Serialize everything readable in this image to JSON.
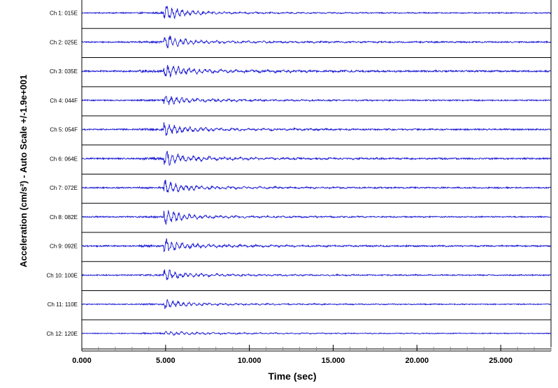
{
  "chart_data": {
    "type": "line",
    "title": "",
    "xlabel": "Time (sec)",
    "ylabel": "Acceleration (cm/s²) - Auto Scale +/-1.9e+001",
    "xlim": [
      0,
      28
    ],
    "x_ticks": [
      "0.000",
      "5.000",
      "10.000",
      "15.000",
      "20.000",
      "25.000"
    ],
    "x_tick_values": [
      0,
      5,
      10,
      15,
      20,
      25
    ],
    "minor_tick_step": 1,
    "ylim": [
      -19,
      19
    ],
    "grid": false,
    "line_color": "#1b1bd6",
    "event_onset_sec": 4.9,
    "series": [
      {
        "name": "Ch 1: 015E",
        "peak": 18,
        "coda": 1.0
      },
      {
        "name": "Ch 2: 025E",
        "peak": 16,
        "coda": 1.2
      },
      {
        "name": "Ch 3: 035E",
        "peak": 15,
        "coda": 1.5
      },
      {
        "name": "Ch 4: 044F",
        "peak": 12,
        "coda": 1.1
      },
      {
        "name": "Ch 5: 054F",
        "peak": 14,
        "coda": 1.3
      },
      {
        "name": "Ch 6: 064E",
        "peak": 17,
        "coda": 1.4
      },
      {
        "name": "Ch 7: 072E",
        "peak": 16,
        "coda": 1.2
      },
      {
        "name": "Ch 8: 082E",
        "peak": 17,
        "coda": 1.1
      },
      {
        "name": "Ch 9: 092E",
        "peak": 13,
        "coda": 1.3
      },
      {
        "name": "Ch 10: 100E",
        "peak": 12,
        "coda": 1.0
      },
      {
        "name": "Ch 11: 110E",
        "peak": 12,
        "coda": 0.9
      },
      {
        "name": "Ch 12: 120E",
        "peak": 4,
        "coda": 0.8
      }
    ]
  }
}
